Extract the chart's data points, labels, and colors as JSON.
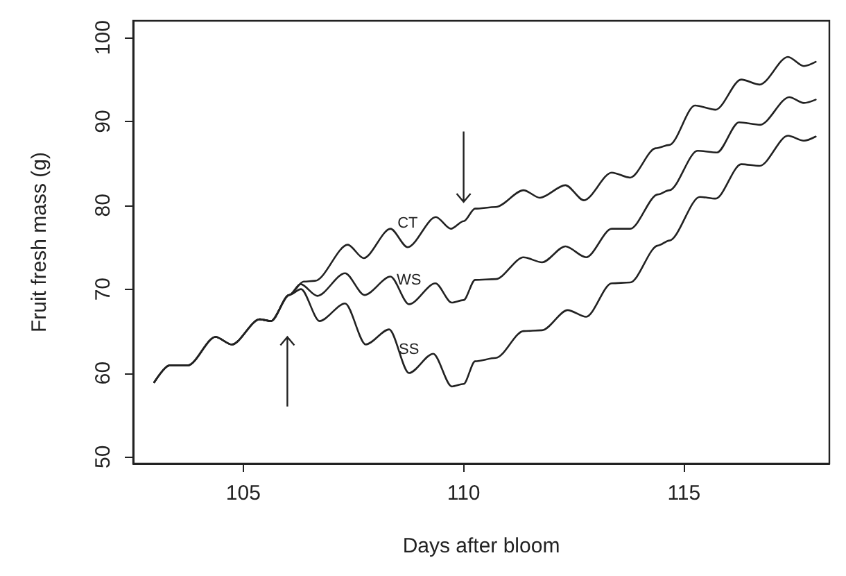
{
  "chart_data": {
    "type": "line",
    "xlabel": "Days after bloom",
    "ylabel": "Fruit fresh mass (g)",
    "xlim": [
      102.5,
      118.3
    ],
    "xticks": [
      105,
      110,
      115
    ],
    "ylim": [
      49.2,
      102
    ],
    "yticks": [
      50,
      60,
      70,
      80,
      90,
      100
    ],
    "grid": false,
    "legend": false,
    "marker": "none",
    "line_style": "solid",
    "series": [
      {
        "name": "CT",
        "color": "#222222",
        "x": [
          102.98,
          103.32,
          103.74,
          104.37,
          104.74,
          105.37,
          105.63,
          106.04,
          106.37,
          106.63,
          107.37,
          107.73,
          108.34,
          108.73,
          109.37,
          109.71,
          110.0,
          110.26,
          110.73,
          111.36,
          111.73,
          112.31,
          112.73,
          113.36,
          113.78,
          114.36,
          114.67,
          115.25,
          115.72,
          116.3,
          116.72,
          117.36,
          117.72,
          117.99
        ],
        "values": [
          58.9,
          60.9,
          60.9,
          64.3,
          63.4,
          66.4,
          66.2,
          69.3,
          70.9,
          71.0,
          75.3,
          73.7,
          77.2,
          75.0,
          78.6,
          77.2,
          78.1,
          79.6,
          79.8,
          81.8,
          80.9,
          82.4,
          80.6,
          83.9,
          83.3,
          86.8,
          87.2,
          91.9,
          91.4,
          95.0,
          94.4,
          97.7,
          96.6,
          97.1
        ]
      },
      {
        "name": "WS",
        "color": "#222222",
        "x": [
          102.98,
          103.32,
          103.74,
          104.37,
          104.74,
          105.37,
          105.63,
          106.04,
          106.3,
          106.68,
          107.31,
          107.75,
          108.34,
          108.76,
          109.36,
          109.73,
          110.0,
          110.26,
          110.73,
          111.36,
          111.78,
          112.31,
          112.78,
          113.36,
          113.78,
          114.41,
          114.67,
          115.31,
          115.75,
          116.25,
          116.73,
          117.39,
          117.72,
          117.99
        ],
        "values": [
          58.9,
          60.9,
          60.9,
          64.3,
          63.4,
          66.4,
          66.2,
          69.3,
          70.6,
          69.2,
          71.9,
          69.3,
          71.5,
          68.2,
          70.7,
          68.4,
          68.7,
          71.1,
          71.2,
          73.8,
          73.2,
          75.1,
          73.8,
          77.2,
          77.2,
          81.3,
          81.8,
          86.5,
          86.3,
          89.9,
          89.6,
          92.9,
          92.2,
          92.6
        ]
      },
      {
        "name": "SS",
        "color": "#222222",
        "x": [
          102.98,
          103.32,
          103.74,
          104.37,
          104.74,
          105.37,
          105.63,
          106.04,
          106.31,
          106.73,
          107.31,
          107.78,
          108.31,
          108.76,
          109.31,
          109.73,
          110.0,
          110.26,
          110.73,
          111.36,
          111.78,
          112.36,
          112.78,
          113.36,
          113.78,
          114.41,
          114.67,
          115.36,
          115.72,
          116.3,
          116.72,
          117.36,
          117.72,
          117.99
        ],
        "values": [
          58.9,
          60.9,
          60.9,
          64.3,
          63.4,
          66.4,
          66.2,
          69.3,
          70.0,
          66.2,
          68.3,
          63.4,
          65.2,
          60.0,
          62.3,
          58.4,
          58.7,
          61.4,
          61.8,
          65.0,
          65.1,
          67.5,
          66.7,
          70.7,
          70.8,
          75.2,
          75.8,
          81.0,
          80.8,
          84.9,
          84.7,
          88.3,
          87.7,
          88.2
        ]
      }
    ]
  }
}
